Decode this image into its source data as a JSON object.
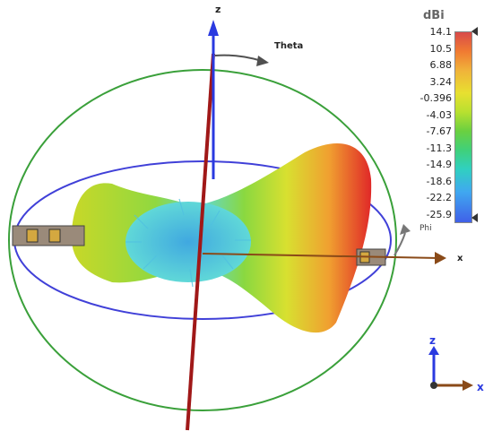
{
  "axes": {
    "z": "z",
    "x": "x",
    "theta": "Theta",
    "phi": "Phi"
  },
  "legend": {
    "title": "dBi",
    "ticks": [
      "14.1",
      "10.5",
      "6.88",
      "3.24",
      "-0.396",
      "-4.03",
      "-7.67",
      "-11.3",
      "-14.9",
      "-18.6",
      "-22.2",
      "-25.9"
    ],
    "colors": [
      "#d84a4a",
      "#f07a32",
      "#e8e030",
      "#6ad040",
      "#30d0c0",
      "#4060e8"
    ]
  },
  "triad": {
    "z": "z",
    "x": "x"
  }
}
